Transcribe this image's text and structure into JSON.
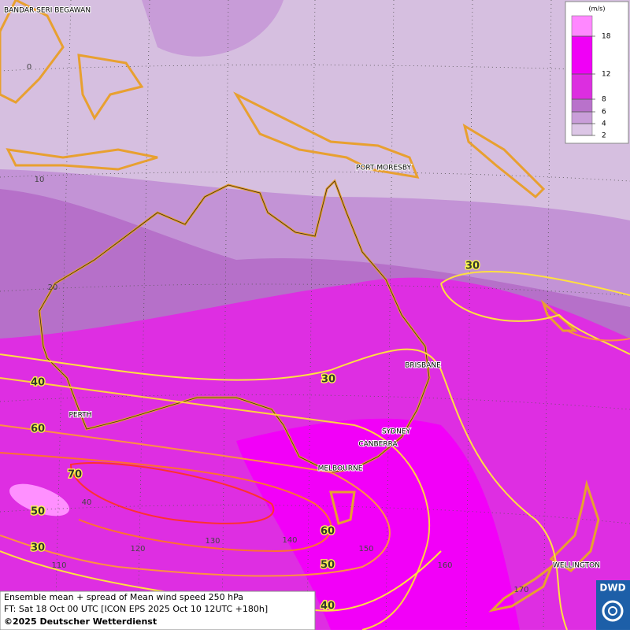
{
  "legend": {
    "unit": "(m/s)",
    "levels": [
      2,
      4,
      6,
      8,
      12,
      18
    ],
    "colors": [
      "#dcc6e6",
      "#c99ed9",
      "#b972cb",
      "#dc2ee0",
      "#f000f6",
      "#ff88ff"
    ]
  },
  "cities": [
    {
      "label": "BANDAR SERI BEGAWAN"
    },
    {
      "label": "PORT MORESBY"
    },
    {
      "label": "BRISBANE"
    },
    {
      "label": "SYDNEY"
    },
    {
      "label": "CANBERRA"
    },
    {
      "label": "MELBOURNE"
    },
    {
      "label": "PERTH"
    },
    {
      "label": "WELLINGTON"
    }
  ],
  "latitude_labels": [
    0,
    10,
    20,
    40
  ],
  "longitude_labels": [
    110,
    120,
    130,
    140,
    150,
    160,
    170
  ],
  "contour_labels": [
    30,
    30,
    40,
    60,
    70,
    50,
    30,
    60,
    50,
    40
  ],
  "caption": {
    "line1": "Ensemble mean + spread of Mean wind speed 250 hPa",
    "line2": "FT: Sat 18 Oct 00 UTC [ICON EPS 2025 Oct 10 12UTC +180h]",
    "line3": "©2025 Deutscher Wetterdienst"
  },
  "logo": {
    "text": "DWD"
  }
}
